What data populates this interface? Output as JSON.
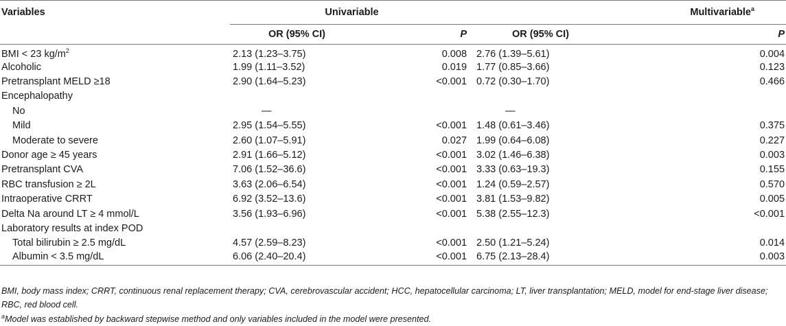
{
  "header": {
    "variables": "Variables",
    "univariable": "Univariable",
    "multivariable": "Multivariable",
    "multivariable_sup": "a",
    "or_label": "OR (95% CI)",
    "p_label": "P"
  },
  "rows": [
    {
      "label": "BMI < 23 kg/m",
      "sup": "2",
      "sub": false,
      "or1": "2.13 (1.23–3.75)",
      "p1": "0.008",
      "or2": "2.76 (1.39–5.61)",
      "p2": "0.004"
    },
    {
      "label": "Alcoholic",
      "sup": "",
      "sub": false,
      "or1": "1.99 (1.11–3.52)",
      "p1": "0.019",
      "or2": "1.77 (0.85–3.66)",
      "p2": "0.123"
    },
    {
      "label": "Pretransplant MELD ≥18",
      "sup": "",
      "sub": false,
      "or1": "2.90 (1.64–5.23)",
      "p1": "<0.001",
      "or2": "0.72 (0.30–1.70)",
      "p2": "0.466"
    },
    {
      "label": "Encephalopathy",
      "sup": "",
      "sub": false,
      "or1": "",
      "p1": "",
      "or2": "",
      "p2": ""
    },
    {
      "label": "No",
      "sup": "",
      "sub": true,
      "or1": "—",
      "p1": "",
      "or2": "—",
      "p2": ""
    },
    {
      "label": "Mild",
      "sup": "",
      "sub": true,
      "or1": "2.95 (1.54–5.55)",
      "p1": "<0.001",
      "or2": "1.48 (0.61–3.46)",
      "p2": "0.375"
    },
    {
      "label": "Moderate to severe",
      "sup": "",
      "sub": true,
      "or1": "2.60 (1.07–5.91)",
      "p1": "0.027",
      "or2": "1.99 (0.64–6.08)",
      "p2": "0.227"
    },
    {
      "label": "Donor age ≥ 45 years",
      "sup": "",
      "sub": false,
      "or1": "2.91 (1.66–5.12)",
      "p1": "<0.001",
      "or2": "3.02 (1.46–6.38)",
      "p2": "0.003"
    },
    {
      "label": "Pretransplant CVA",
      "sup": "",
      "sub": false,
      "or1": "7.06 (1.52–36.6)",
      "p1": "<0.001",
      "or2": "3.33 (0.63–19.3)",
      "p2": "0.155"
    },
    {
      "label": "RBC transfusion ≥ 2L",
      "sup": "",
      "sub": false,
      "or1": "3.63 (2.06–6.54)",
      "p1": "<0.001",
      "or2": "1.24 (0.59–2.57)",
      "p2": "0.570"
    },
    {
      "label": "Intraoperative CRRT",
      "sup": "",
      "sub": false,
      "or1": "6.92 (3.52–13.6)",
      "p1": "<0.001",
      "or2": "3.81 (1.53–9.82)",
      "p2": "0.005"
    },
    {
      "label": "Delta Na around LT ≥ 4 mmol/L",
      "sup": "",
      "sub": false,
      "or1": "3.56 (1.93–6.96)",
      "p1": "<0.001",
      "or2": "5.38 (2.55–12.3)",
      "p2": "<0.001"
    },
    {
      "label": "Laboratory results at index POD",
      "sup": "",
      "sub": false,
      "or1": "",
      "p1": "",
      "or2": "",
      "p2": ""
    },
    {
      "label": "Total bilirubin ≥ 2.5 mg/dL",
      "sup": "",
      "sub": true,
      "or1": "4.57 (2.59–8.23)",
      "p1": "<0.001",
      "or2": "2.50 (1.21–5.24)",
      "p2": "0.014"
    },
    {
      "label": "Albumin < 3.5 mg/dL",
      "sup": "",
      "sub": true,
      "or1": "6.06 (2.40–20.4)",
      "p1": "<0.001",
      "or2": "6.75 (2.13–28.4)",
      "p2": "0.003"
    }
  ],
  "footnotes": {
    "abbreviations": "BMI, body mass index; CRRT, continuous renal replacement therapy; CVA, cerebrovascular accident; HCC, hepatocellular carcinoma; LT, liver transplantation; MELD, model for end-stage liver disease; RBC, red blood cell.",
    "note_marker": "a",
    "note_text": "Model was established by backward stepwise method and only variables included in the model were presented."
  }
}
